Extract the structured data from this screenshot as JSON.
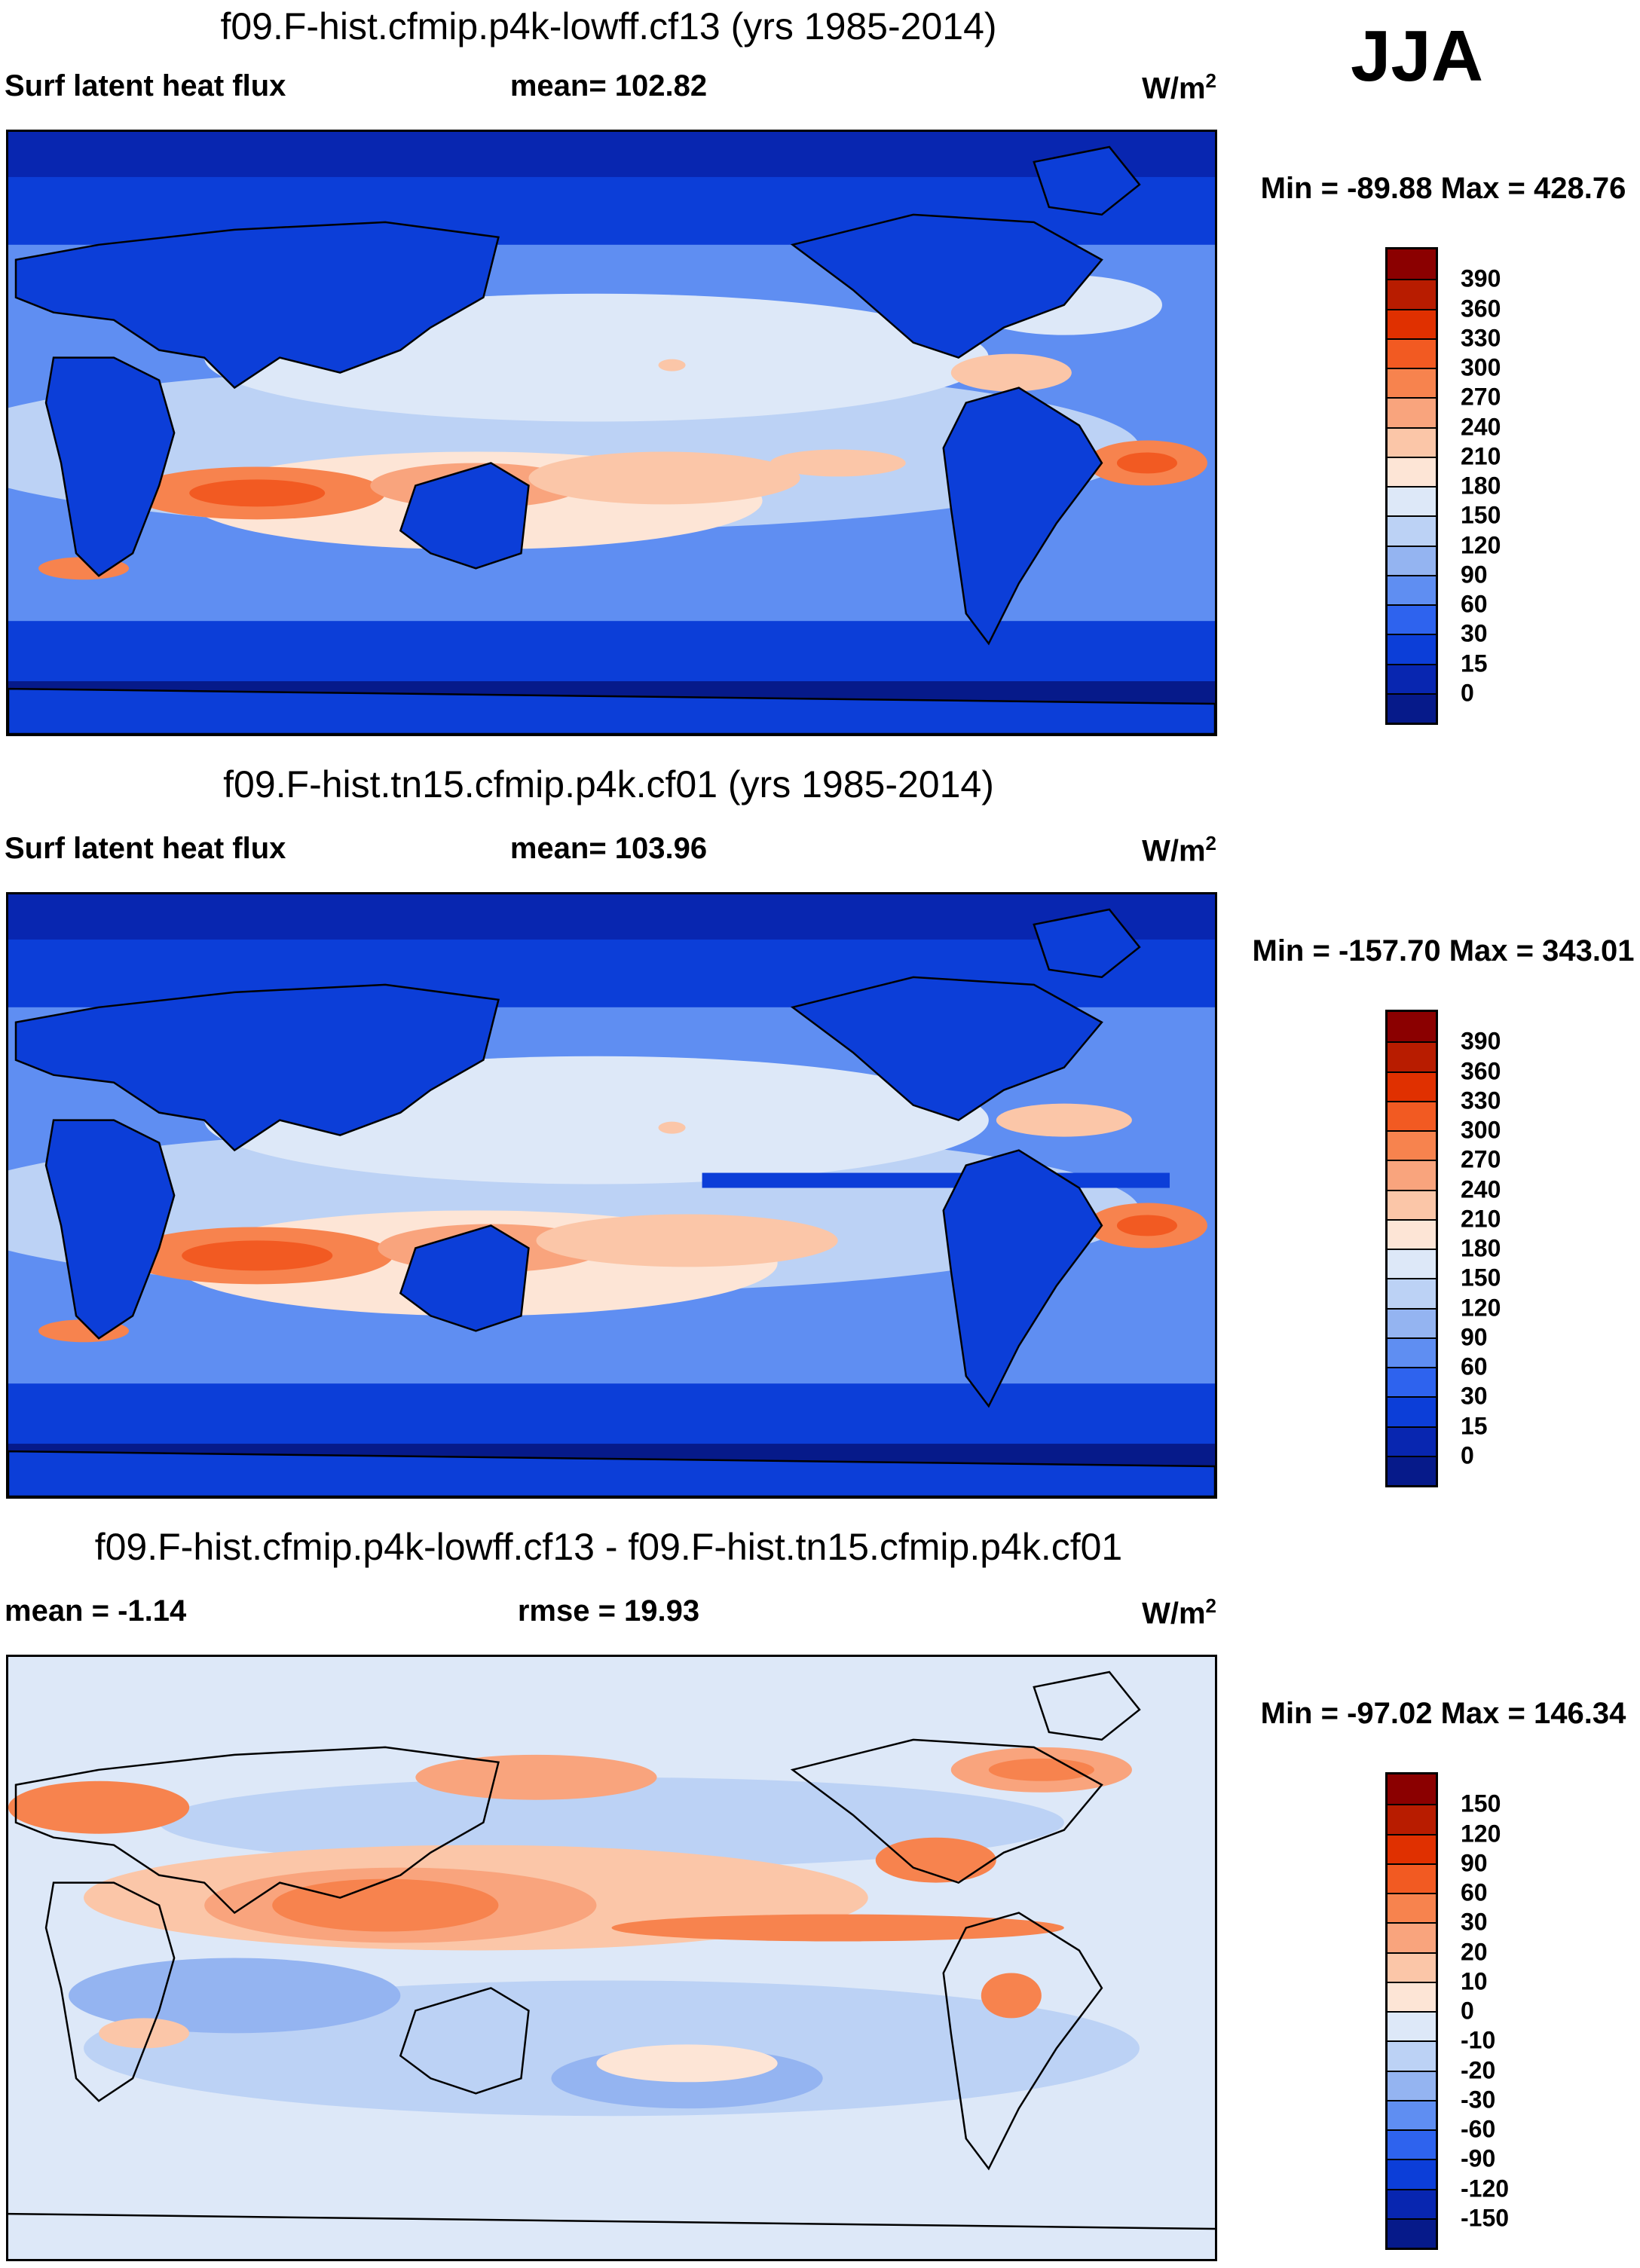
{
  "season": "JJA",
  "panels": [
    {
      "title": "f09.F-hist.cfmip.p4k-lowff.cf13 (yrs 1985-2014)",
      "left_label": "Surf latent heat flux",
      "mid_label": "mean= 102.82",
      "unit_base": "W/m",
      "unit_exp": "2",
      "minmax": "Min = -89.88 Max = 428.76",
      "ticks": [
        "390",
        "360",
        "330",
        "300",
        "270",
        "240",
        "210",
        "180",
        "150",
        "120",
        "90",
        "60",
        "30",
        "15",
        "0"
      ],
      "colors": [
        "#8b0000",
        "#b81c00",
        "#e03000",
        "#f25a22",
        "#f7834e",
        "#f9a47d",
        "#fbc6a8",
        "#fde5d6",
        "#dde8f8",
        "#bcd2f5",
        "#94b4f1",
        "#5f8ef2",
        "#2e63ee",
        "#0c3ed8",
        "#0826b0",
        "#061a8a"
      ]
    },
    {
      "title": "f09.F-hist.tn15.cfmip.p4k.cf01 (yrs 1985-2014)",
      "left_label": "Surf latent heat flux",
      "mid_label": "mean= 103.96",
      "unit_base": "W/m",
      "unit_exp": "2",
      "minmax": "Min = -157.70 Max = 343.01",
      "ticks": [
        "390",
        "360",
        "330",
        "300",
        "270",
        "240",
        "210",
        "180",
        "150",
        "120",
        "90",
        "60",
        "30",
        "15",
        "0"
      ],
      "colors": [
        "#8b0000",
        "#b81c00",
        "#e03000",
        "#f25a22",
        "#f7834e",
        "#f9a47d",
        "#fbc6a8",
        "#fde5d6",
        "#dde8f8",
        "#bcd2f5",
        "#94b4f1",
        "#5f8ef2",
        "#2e63ee",
        "#0c3ed8",
        "#0826b0",
        "#061a8a"
      ]
    },
    {
      "title": "f09.F-hist.cfmip.p4k-lowff.cf13 - f09.F-hist.tn15.cfmip.p4k.cf01",
      "left_label": "mean =  -1.14",
      "mid_label": "rmse =  19.93",
      "unit_base": "W/m",
      "unit_exp": "2",
      "minmax": "Min = -97.02 Max = 146.34",
      "ticks": [
        "150",
        "120",
        "90",
        "60",
        "30",
        "20",
        "10",
        "0",
        "-10",
        "-20",
        "-30",
        "-60",
        "-90",
        "-120",
        "-150"
      ],
      "colors": [
        "#8b0000",
        "#b81c00",
        "#e03000",
        "#f25a22",
        "#f7834e",
        "#f9a47d",
        "#fbc6a8",
        "#fde5d6",
        "#dde8f8",
        "#bcd2f5",
        "#94b4f1",
        "#5f8ef2",
        "#2e63ee",
        "#0c3ed8",
        "#0826b0",
        "#061a8a"
      ]
    }
  ]
}
